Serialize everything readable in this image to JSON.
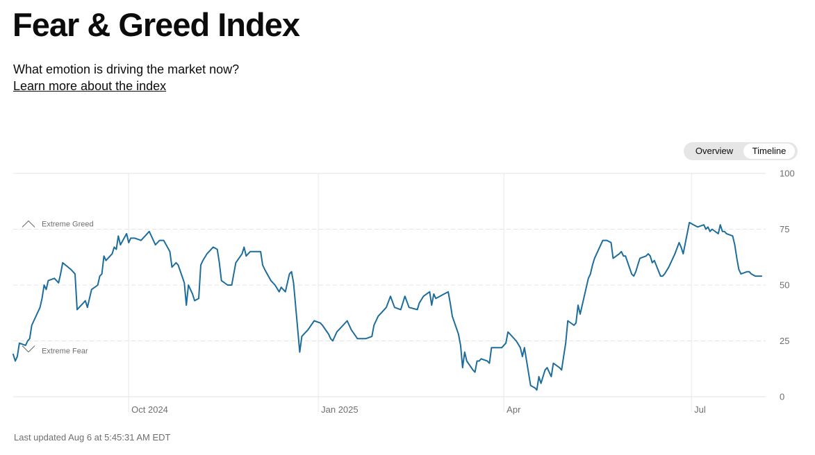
{
  "page": {
    "title": "Fear & Greed Index",
    "subtitle": "What emotion is driving the market now?",
    "learn_more": "Learn more about the index",
    "toggle": {
      "overview": "Overview",
      "timeline": "Timeline",
      "active": "Timeline"
    },
    "last_updated": "Last updated Aug 6 at 5:45:31 AM EDT"
  },
  "chart_data": {
    "type": "line",
    "title": "",
    "xlabel": "",
    "ylabel": "",
    "ylim": [
      0,
      100
    ],
    "y_ticks": [
      0,
      25,
      50,
      75,
      100
    ],
    "x_ticks": [
      {
        "label": "Oct 2024",
        "x": "2024-10-01"
      },
      {
        "label": "Jan 2025",
        "x": "2025-01-01"
      },
      {
        "label": "Apr",
        "x": "2025-04-01"
      },
      {
        "label": "Jul",
        "x": "2025-07-01"
      }
    ],
    "x_range": [
      "2024-08-06",
      "2025-08-06"
    ],
    "grid": true,
    "line_color": "#1c6d9c",
    "zone_labels": [
      {
        "label": "Extreme Greed",
        "y": 75,
        "marker": "up-chevron-icon"
      },
      {
        "label": "Extreme Fear",
        "y": 25,
        "marker": "down-chevron-icon"
      }
    ],
    "series": [
      {
        "values": [
          [
            "2024-08-06",
            19
          ],
          [
            "2024-08-07",
            16
          ],
          [
            "2024-08-08",
            18
          ],
          [
            "2024-08-09",
            24
          ],
          [
            "2024-08-12",
            23
          ],
          [
            "2024-08-13",
            25
          ],
          [
            "2024-08-14",
            26
          ],
          [
            "2024-08-15",
            32
          ],
          [
            "2024-08-16",
            34
          ],
          [
            "2024-08-19",
            40
          ],
          [
            "2024-08-20",
            44
          ],
          [
            "2024-08-21",
            50
          ],
          [
            "2024-08-22",
            48
          ],
          [
            "2024-08-23",
            52
          ],
          [
            "2024-08-26",
            53
          ],
          [
            "2024-08-27",
            52
          ],
          [
            "2024-08-28",
            51
          ],
          [
            "2024-08-29",
            55
          ],
          [
            "2024-08-30",
            60
          ],
          [
            "2024-09-03",
            57
          ],
          [
            "2024-09-04",
            56
          ],
          [
            "2024-09-05",
            55
          ],
          [
            "2024-09-06",
            39
          ],
          [
            "2024-09-09",
            42
          ],
          [
            "2024-09-10",
            43
          ],
          [
            "2024-09-11",
            40
          ],
          [
            "2024-09-12",
            44
          ],
          [
            "2024-09-13",
            48
          ],
          [
            "2024-09-16",
            50
          ],
          [
            "2024-09-17",
            54
          ],
          [
            "2024-09-18",
            55
          ],
          [
            "2024-09-19",
            63
          ],
          [
            "2024-09-20",
            61
          ],
          [
            "2024-09-23",
            64
          ],
          [
            "2024-09-24",
            67
          ],
          [
            "2024-09-25",
            66
          ],
          [
            "2024-09-26",
            72
          ],
          [
            "2024-09-27",
            68
          ],
          [
            "2024-09-30",
            73
          ],
          [
            "2024-10-01",
            69
          ],
          [
            "2024-10-02",
            71
          ],
          [
            "2024-10-04",
            71
          ],
          [
            "2024-10-07",
            70
          ],
          [
            "2024-10-09",
            72
          ],
          [
            "2024-10-11",
            74
          ],
          [
            "2024-10-14",
            68
          ],
          [
            "2024-10-16",
            70
          ],
          [
            "2024-10-18",
            70
          ],
          [
            "2024-10-21",
            65
          ],
          [
            "2024-10-22",
            58
          ],
          [
            "2024-10-24",
            60
          ],
          [
            "2024-10-25",
            59
          ],
          [
            "2024-10-28",
            51
          ],
          [
            "2024-10-29",
            41
          ],
          [
            "2024-10-30",
            50
          ],
          [
            "2024-11-01",
            46
          ],
          [
            "2024-11-02",
            43
          ],
          [
            "2024-11-04",
            44
          ],
          [
            "2024-11-05",
            59
          ],
          [
            "2024-11-06",
            61
          ],
          [
            "2024-11-08",
            64
          ],
          [
            "2024-11-11",
            67
          ],
          [
            "2024-11-13",
            66
          ],
          [
            "2024-11-14",
            60
          ],
          [
            "2024-11-15",
            52
          ],
          [
            "2024-11-18",
            50
          ],
          [
            "2024-11-20",
            50
          ],
          [
            "2024-11-22",
            60
          ],
          [
            "2024-11-25",
            64
          ],
          [
            "2024-11-26",
            67
          ],
          [
            "2024-11-27",
            63
          ],
          [
            "2024-11-29",
            65
          ],
          [
            "2024-12-02",
            65
          ],
          [
            "2024-12-04",
            65
          ],
          [
            "2024-12-05",
            59
          ],
          [
            "2024-12-06",
            57
          ],
          [
            "2024-12-09",
            52
          ],
          [
            "2024-12-11",
            50
          ],
          [
            "2024-12-13",
            47
          ],
          [
            "2024-12-14",
            49
          ],
          [
            "2024-12-16",
            47
          ],
          [
            "2024-12-18",
            55
          ],
          [
            "2024-12-19",
            56
          ],
          [
            "2024-12-20",
            51
          ],
          [
            "2024-12-23",
            20
          ],
          [
            "2024-12-24",
            27
          ],
          [
            "2024-12-26",
            29
          ],
          [
            "2024-12-27",
            30
          ],
          [
            "2024-12-30",
            34
          ],
          [
            "2025-01-02",
            33
          ],
          [
            "2025-01-03",
            32
          ],
          [
            "2025-01-06",
            28
          ],
          [
            "2025-01-07",
            26
          ],
          [
            "2025-01-08",
            25
          ],
          [
            "2025-01-10",
            29
          ],
          [
            "2025-01-13",
            32
          ],
          [
            "2025-01-15",
            34
          ],
          [
            "2025-01-17",
            30
          ],
          [
            "2025-01-20",
            26
          ],
          [
            "2025-01-24",
            26
          ],
          [
            "2025-01-27",
            27
          ],
          [
            "2025-01-28",
            32
          ],
          [
            "2025-01-30",
            36
          ],
          [
            "2025-02-03",
            40
          ],
          [
            "2025-02-05",
            45
          ],
          [
            "2025-02-07",
            40
          ],
          [
            "2025-02-10",
            39
          ],
          [
            "2025-02-12",
            45
          ],
          [
            "2025-02-14",
            40
          ],
          [
            "2025-02-18",
            39
          ],
          [
            "2025-02-19",
            42
          ],
          [
            "2025-02-21",
            45
          ],
          [
            "2025-02-24",
            47
          ],
          [
            "2025-02-25",
            41
          ],
          [
            "2025-02-26",
            46
          ],
          [
            "2025-02-27",
            44
          ],
          [
            "2025-03-03",
            46
          ],
          [
            "2025-03-05",
            47
          ],
          [
            "2025-03-06",
            42
          ],
          [
            "2025-03-07",
            36
          ],
          [
            "2025-03-10",
            28
          ],
          [
            "2025-03-11",
            23
          ],
          [
            "2025-03-12",
            13
          ],
          [
            "2025-03-13",
            20
          ],
          [
            "2025-03-14",
            16
          ],
          [
            "2025-03-17",
            12
          ],
          [
            "2025-03-18",
            11
          ],
          [
            "2025-03-19",
            16
          ],
          [
            "2025-03-20",
            16
          ],
          [
            "2025-03-21",
            17
          ],
          [
            "2025-03-24",
            16
          ],
          [
            "2025-03-25",
            15
          ],
          [
            "2025-03-26",
            22
          ],
          [
            "2025-03-28",
            22
          ],
          [
            "2025-03-31",
            22
          ],
          [
            "2025-04-02",
            24
          ],
          [
            "2025-04-03",
            29
          ],
          [
            "2025-04-04",
            28
          ],
          [
            "2025-04-07",
            25
          ],
          [
            "2025-04-09",
            22
          ],
          [
            "2025-04-10",
            18
          ],
          [
            "2025-04-11",
            22
          ],
          [
            "2025-04-14",
            5
          ],
          [
            "2025-04-16",
            4
          ],
          [
            "2025-04-17",
            3
          ],
          [
            "2025-04-18",
            9
          ],
          [
            "2025-04-19",
            6
          ],
          [
            "2025-04-21",
            12
          ],
          [
            "2025-04-22",
            13
          ],
          [
            "2025-04-24",
            9
          ],
          [
            "2025-04-25",
            15
          ],
          [
            "2025-04-28",
            13
          ],
          [
            "2025-04-29",
            12
          ],
          [
            "2025-04-30",
            18
          ],
          [
            "2025-05-01",
            24
          ],
          [
            "2025-05-02",
            34
          ],
          [
            "2025-05-05",
            32
          ],
          [
            "2025-05-06",
            33
          ],
          [
            "2025-05-07",
            41
          ],
          [
            "2025-05-08",
            37
          ],
          [
            "2025-05-12",
            53
          ],
          [
            "2025-05-13",
            55
          ],
          [
            "2025-05-14",
            59
          ],
          [
            "2025-05-15",
            62
          ],
          [
            "2025-05-16",
            64
          ],
          [
            "2025-05-19",
            70
          ],
          [
            "2025-05-20",
            70
          ],
          [
            "2025-05-21",
            70
          ],
          [
            "2025-05-23",
            69
          ],
          [
            "2025-05-24",
            62
          ],
          [
            "2025-05-27",
            64
          ],
          [
            "2025-05-28",
            65
          ],
          [
            "2025-05-29",
            63
          ],
          [
            "2025-05-30",
            63
          ],
          [
            "2025-06-02",
            55
          ],
          [
            "2025-06-03",
            54
          ],
          [
            "2025-06-04",
            56
          ],
          [
            "2025-06-05",
            59
          ],
          [
            "2025-06-06",
            62
          ],
          [
            "2025-06-09",
            63
          ],
          [
            "2025-06-10",
            64
          ],
          [
            "2025-06-11",
            63
          ],
          [
            "2025-06-12",
            60
          ],
          [
            "2025-06-13",
            61
          ],
          [
            "2025-06-16",
            54
          ],
          [
            "2025-06-17",
            54
          ],
          [
            "2025-06-18",
            55
          ],
          [
            "2025-06-20",
            58
          ],
          [
            "2025-06-23",
            64
          ],
          [
            "2025-06-25",
            69
          ],
          [
            "2025-06-26",
            67
          ],
          [
            "2025-06-27",
            64
          ],
          [
            "2025-06-30",
            78
          ],
          [
            "2025-07-02",
            77
          ],
          [
            "2025-07-04",
            76
          ],
          [
            "2025-07-07",
            77
          ],
          [
            "2025-07-08",
            75
          ],
          [
            "2025-07-09",
            76
          ],
          [
            "2025-07-10",
            74
          ],
          [
            "2025-07-11",
            75
          ],
          [
            "2025-07-14",
            73
          ],
          [
            "2025-07-15",
            77
          ],
          [
            "2025-07-16",
            74
          ],
          [
            "2025-07-17",
            74
          ],
          [
            "2025-07-18",
            73
          ],
          [
            "2025-07-21",
            72
          ],
          [
            "2025-07-22",
            68
          ],
          [
            "2025-07-23",
            62
          ],
          [
            "2025-07-24",
            57
          ],
          [
            "2025-07-25",
            55
          ],
          [
            "2025-07-28",
            56
          ],
          [
            "2025-07-29",
            56
          ],
          [
            "2025-07-30",
            55
          ],
          [
            "2025-08-01",
            54
          ],
          [
            "2025-08-04",
            54
          ]
        ]
      }
    ]
  }
}
